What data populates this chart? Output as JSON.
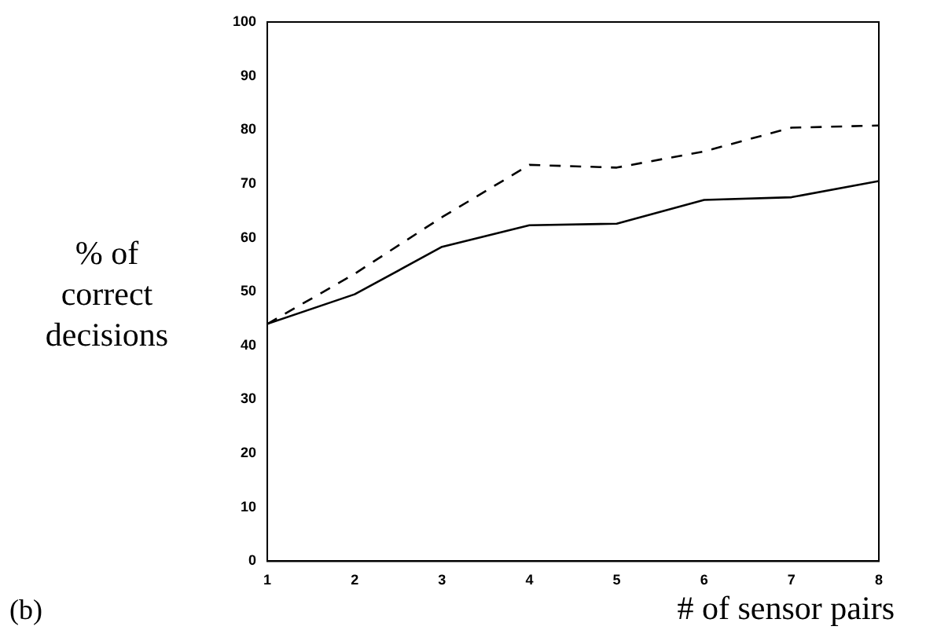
{
  "chart_data": {
    "type": "line",
    "xlabel": "# of sensor pairs",
    "ylabel": "% of correct decisions",
    "annotations": [
      "(b)"
    ],
    "x": [
      1,
      2,
      3,
      4,
      5,
      6,
      7,
      8
    ],
    "series": [
      {
        "color": "#000000",
        "line_style": "solid",
        "values": [
          44,
          49.5,
          58.3,
          62.3,
          62.6,
          67,
          67.5,
          70.5
        ]
      },
      {
        "color": "#000000",
        "line_style": "dashed",
        "values": [
          44,
          53.3,
          63.8,
          73.5,
          73,
          76,
          80.4,
          80.8
        ]
      }
    ],
    "xlim": [
      1,
      8
    ],
    "xticks": [
      1,
      2,
      3,
      4,
      5,
      6,
      7,
      8
    ],
    "ylim": [
      0,
      100
    ],
    "yticks": [
      0,
      10,
      20,
      30,
      40,
      50,
      60,
      70,
      80,
      90,
      100
    ],
    "marker": "none",
    "legend": false
  }
}
